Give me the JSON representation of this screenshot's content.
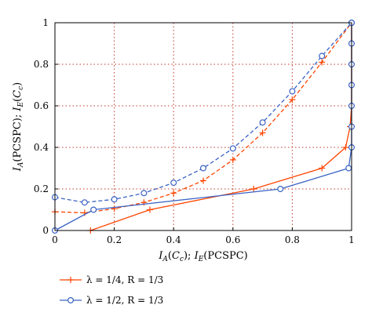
{
  "chart_data": {
    "type": "line",
    "xlabel": "I_A(C_c); I_E(PCSPC)",
    "ylabel": "I_A(PCSPC); I_E(C_c)",
    "xlim": [
      0,
      1
    ],
    "ylim": [
      0,
      1
    ],
    "x_ticks": [
      "0",
      "0.2",
      "0.4",
      "0.6",
      "0.8",
      "1"
    ],
    "y_ticks": [
      "0",
      "0.2",
      "0.4",
      "0.6",
      "0.8",
      "1"
    ],
    "grid": true,
    "legend_position": "bottom-left, below plot",
    "series": [
      {
        "name": "λ = 1/4, R = 1/3",
        "color": "#ff4500",
        "marker": "plus",
        "solid": [
          [
            0.12,
            0.0
          ],
          [
            0.32,
            0.1
          ],
          [
            0.67,
            0.2
          ],
          [
            0.9,
            0.3
          ],
          [
            0.98,
            0.4
          ],
          [
            0.995,
            0.5
          ],
          [
            1.0,
            0.6
          ],
          [
            1.0,
            0.7
          ],
          [
            1.0,
            0.8
          ],
          [
            1.0,
            0.9
          ],
          [
            1.0,
            1.0
          ]
        ],
        "dashed": [
          [
            0.0,
            0.09
          ],
          [
            0.1,
            0.085
          ],
          [
            0.2,
            0.105
          ],
          [
            0.3,
            0.135
          ],
          [
            0.4,
            0.18
          ],
          [
            0.5,
            0.24
          ],
          [
            0.6,
            0.34
          ],
          [
            0.7,
            0.47
          ],
          [
            0.8,
            0.63
          ],
          [
            0.9,
            0.81
          ],
          [
            1.0,
            1.0
          ]
        ]
      },
      {
        "name": "λ = 1/2, R = 1/3",
        "color": "#3a63c4",
        "marker": "circle",
        "solid": [
          [
            0.0,
            0.0
          ],
          [
            0.13,
            0.1
          ],
          [
            0.76,
            0.2
          ],
          [
            0.99,
            0.3
          ],
          [
            1.0,
            0.4
          ],
          [
            1.0,
            0.5
          ],
          [
            1.0,
            0.6
          ],
          [
            1.0,
            0.7
          ],
          [
            1.0,
            0.8
          ],
          [
            1.0,
            0.9
          ],
          [
            1.0,
            1.0
          ]
        ],
        "dashed": [
          [
            0.0,
            0.16
          ],
          [
            0.1,
            0.135
          ],
          [
            0.2,
            0.15
          ],
          [
            0.3,
            0.18
          ],
          [
            0.4,
            0.23
          ],
          [
            0.5,
            0.3
          ],
          [
            0.6,
            0.395
          ],
          [
            0.7,
            0.52
          ],
          [
            0.8,
            0.67
          ],
          [
            0.9,
            0.84
          ],
          [
            1.0,
            1.0
          ]
        ]
      }
    ]
  }
}
